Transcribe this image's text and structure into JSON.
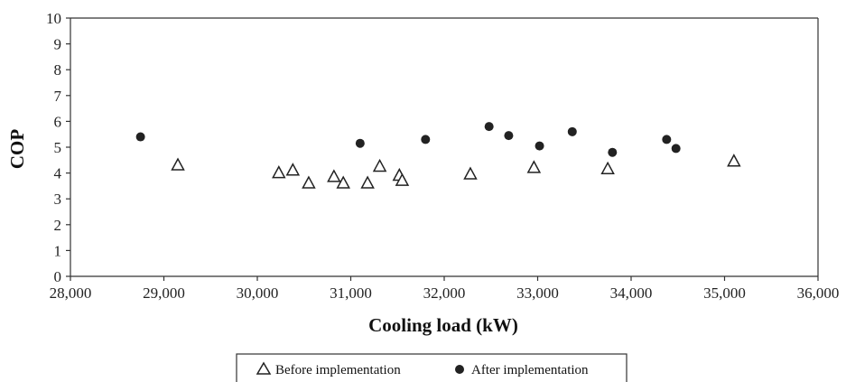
{
  "chart_data": {
    "type": "scatter",
    "xlabel": "Cooling load (kW)",
    "ylabel": "COP",
    "xlim": [
      28000,
      36000
    ],
    "ylim": [
      0,
      10
    ],
    "x_ticks": [
      "28,000",
      "29,000",
      "30,000",
      "31,000",
      "32,000",
      "33,000",
      "34,000",
      "35,000",
      "36,000"
    ],
    "y_ticks": [
      "0",
      "1",
      "2",
      "3",
      "4",
      "5",
      "6",
      "7",
      "8",
      "9",
      "10"
    ],
    "grid": false,
    "legend_position": "bottom",
    "series": [
      {
        "name": "Before implementation",
        "marker": "open-triangle",
        "points": [
          {
            "x": 29150,
            "y": 4.3
          },
          {
            "x": 30230,
            "y": 4.0
          },
          {
            "x": 30380,
            "y": 4.1
          },
          {
            "x": 30550,
            "y": 3.6
          },
          {
            "x": 30820,
            "y": 3.85
          },
          {
            "x": 30920,
            "y": 3.6
          },
          {
            "x": 31180,
            "y": 3.6
          },
          {
            "x": 31310,
            "y": 4.25
          },
          {
            "x": 31520,
            "y": 3.9
          },
          {
            "x": 31550,
            "y": 3.7
          },
          {
            "x": 32280,
            "y": 3.95
          },
          {
            "x": 32960,
            "y": 4.2
          },
          {
            "x": 33750,
            "y": 4.15
          },
          {
            "x": 35100,
            "y": 4.45
          }
        ]
      },
      {
        "name": "After implementation",
        "marker": "filled-circle",
        "points": [
          {
            "x": 28750,
            "y": 5.4
          },
          {
            "x": 31100,
            "y": 5.15
          },
          {
            "x": 31800,
            "y": 5.3
          },
          {
            "x": 32480,
            "y": 5.8
          },
          {
            "x": 32690,
            "y": 5.45
          },
          {
            "x": 33020,
            "y": 5.05
          },
          {
            "x": 33370,
            "y": 5.6
          },
          {
            "x": 33800,
            "y": 4.8
          },
          {
            "x": 34380,
            "y": 5.3
          },
          {
            "x": 34480,
            "y": 4.95
          }
        ]
      }
    ]
  }
}
